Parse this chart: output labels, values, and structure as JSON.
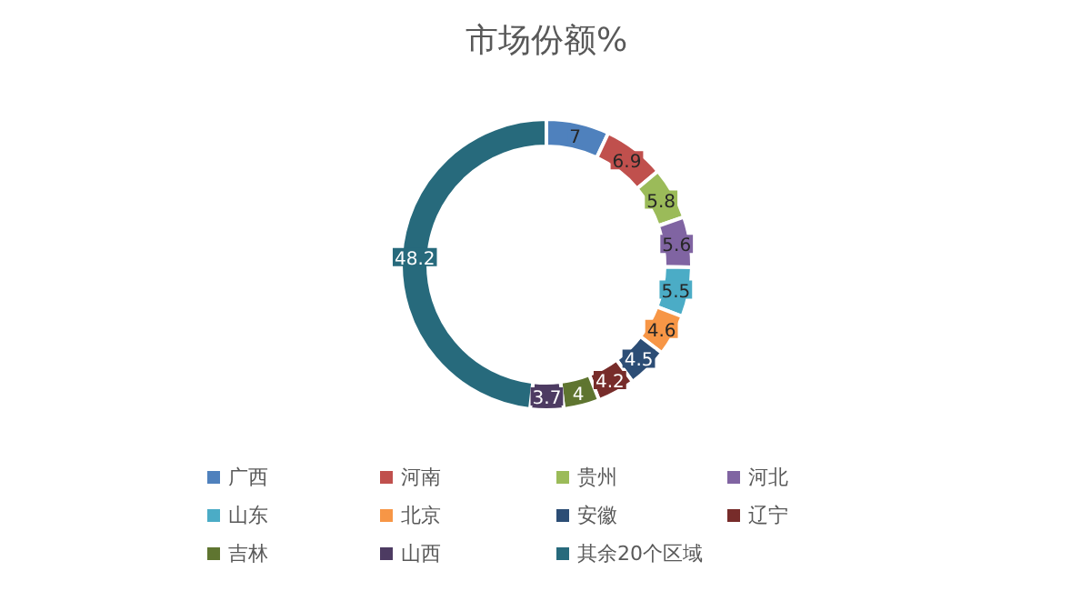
{
  "chart_data": {
    "type": "donut",
    "title": "市场份额%",
    "categories": [
      "广西",
      "河南",
      "贵州",
      "河北",
      "山东",
      "北京",
      "安徽",
      "辽宁",
      "吉林",
      "山西",
      "其余20个区域"
    ],
    "values": [
      7,
      6.9,
      5.8,
      5.6,
      5.5,
      4.6,
      4.5,
      4.2,
      4,
      3.7,
      48.2
    ],
    "colors": [
      "#4f81bd",
      "#c0504d",
      "#9bbb59",
      "#8064a2",
      "#4bacc6",
      "#f79646",
      "#2c4d75",
      "#772c2a",
      "#5f7530",
      "#4d3b62",
      "#276a7c"
    ],
    "data_labels": true,
    "legend": "bottom"
  }
}
